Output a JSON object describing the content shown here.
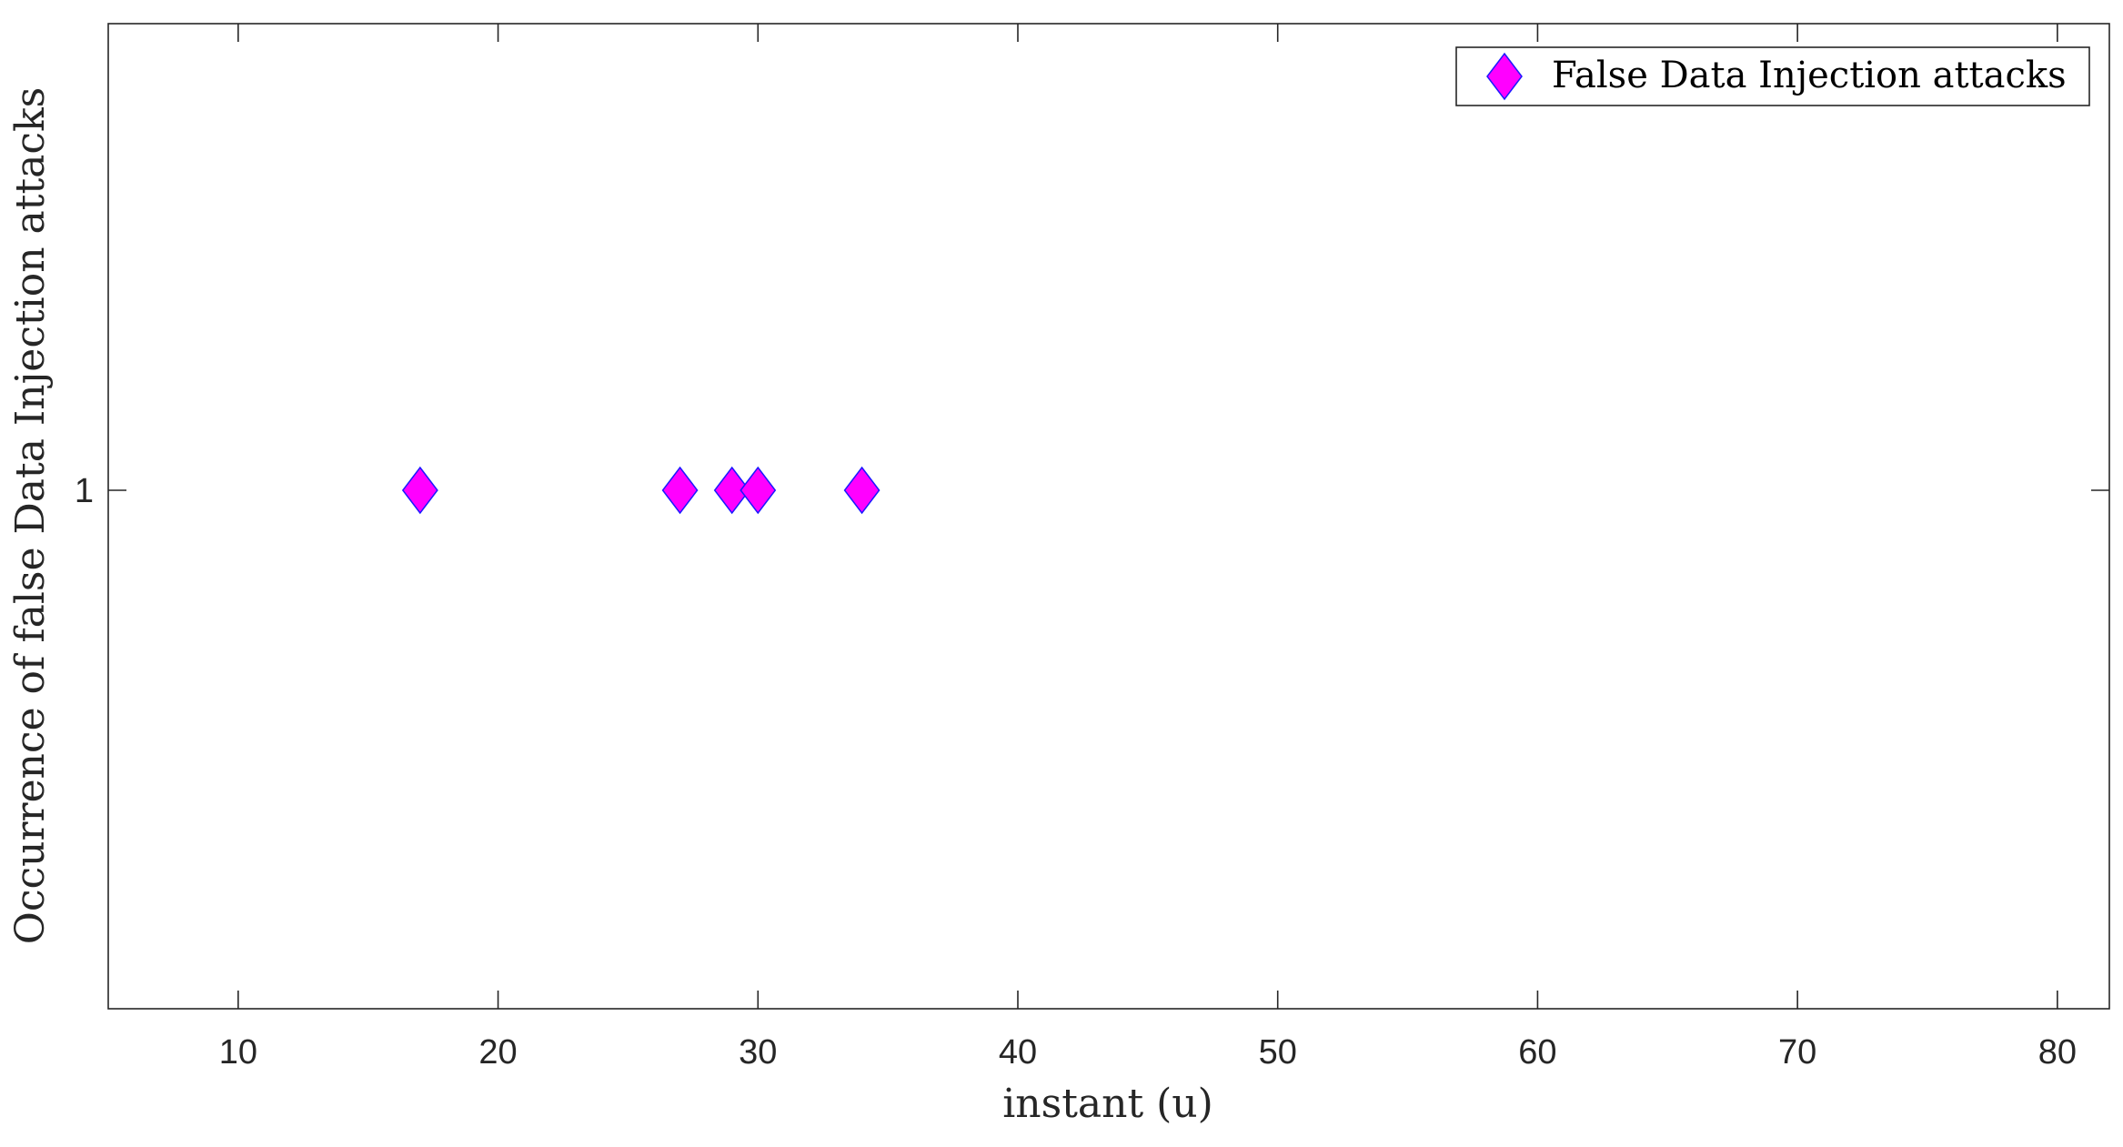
{
  "chart_data": {
    "type": "scatter",
    "xlabel": "instant (u)",
    "ylabel": "Occurrence of false Data Injection attacks",
    "xlim": [
      5,
      82
    ],
    "ylim": [
      0,
      1.9
    ],
    "xticks": [
      10,
      20,
      30,
      40,
      50,
      60,
      70,
      80
    ],
    "yticks": [
      1
    ],
    "grid": false,
    "legend_position": "top-right",
    "series": [
      {
        "name": "False Data Injection attacks",
        "marker": "diamond",
        "color": "#ff00ff",
        "edge_color": "#1a1aff",
        "points": [
          {
            "x": 17,
            "y": 1
          },
          {
            "x": 27,
            "y": 1
          },
          {
            "x": 29,
            "y": 1
          },
          {
            "x": 30,
            "y": 1
          },
          {
            "x": 34,
            "y": 1
          }
        ]
      }
    ]
  }
}
